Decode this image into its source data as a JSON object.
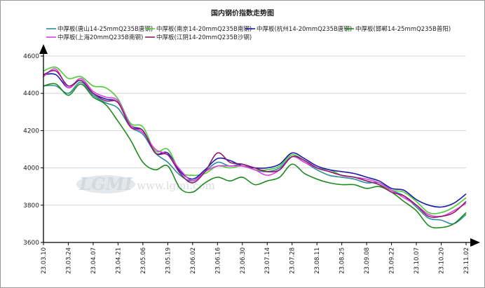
{
  "chart_data": {
    "type": "line",
    "title": "国内钢价指数走势图",
    "xlabel": "",
    "ylabel": "",
    "ylim": [
      3600,
      4600
    ],
    "yticks": [
      3600,
      3800,
      4000,
      4200,
      4400,
      4600
    ],
    "grid": "horizontal",
    "legend_position": "top",
    "x_tick_labels": [
      "23.03.10",
      "23.03.24",
      "23.04.07",
      "23.04.21",
      "23.05.06",
      "23.05.19",
      "23.06.02",
      "23.06.16",
      "23.06.30",
      "23.07.14",
      "23.07.28",
      "23.08.11",
      "23.08.25",
      "23.09.08",
      "23.09.22",
      "23.10.07",
      "23.10.20",
      "23.11.02"
    ],
    "x": [
      "23.03.10",
      "23.03.17",
      "23.03.24",
      "23.03.31",
      "23.04.07",
      "23.04.14",
      "23.04.21",
      "23.04.28",
      "23.05.06",
      "23.05.12",
      "23.05.19",
      "23.05.26",
      "23.06.02",
      "23.06.09",
      "23.06.16",
      "23.06.23",
      "23.06.30",
      "23.07.07",
      "23.07.14",
      "23.07.21",
      "23.07.28",
      "23.08.04",
      "23.08.11",
      "23.08.18",
      "23.08.25",
      "23.09.01",
      "23.09.08",
      "23.09.15",
      "23.09.22",
      "23.09.29",
      "23.10.07",
      "23.10.13",
      "23.10.20",
      "23.10.27",
      "23.11.02"
    ],
    "series": [
      {
        "name": "中厚板(唐山14-25mmQ235B唐钢)",
        "color": "#2a8c9c",
        "values": [
          4440,
          4440,
          4400,
          4460,
          4390,
          4350,
          4320,
          4220,
          4180,
          4080,
          4030,
          3960,
          3930,
          3980,
          4030,
          4010,
          4020,
          3990,
          3980,
          4000,
          4060,
          4030,
          3990,
          3960,
          3950,
          3940,
          3920,
          3920,
          3880,
          3850,
          3790,
          3730,
          3720,
          3700,
          3750
        ]
      },
      {
        "name": "中厚板(南京14-20mmQ235B南钢)",
        "color": "#4ccc38",
        "values": [
          4520,
          4540,
          4480,
          4490,
          4440,
          4430,
          4370,
          4240,
          4220,
          4090,
          4100,
          3980,
          3960,
          3970,
          4010,
          4000,
          4010,
          3990,
          3990,
          4010,
          4070,
          4040,
          4000,
          3990,
          3960,
          3950,
          3930,
          3910,
          3880,
          3870,
          3820,
          3760,
          3760,
          3790,
          3840
        ]
      },
      {
        "name": "中厚板(杭州14-20mmQ235B唐钢)",
        "color": "#1c1ca8",
        "values": [
          4500,
          4500,
          4430,
          4470,
          4400,
          4370,
          4350,
          4230,
          4200,
          4080,
          4080,
          3980,
          3940,
          3990,
          4050,
          4040,
          4010,
          4000,
          4000,
          4020,
          4080,
          4050,
          4010,
          3990,
          3980,
          3970,
          3950,
          3930,
          3890,
          3880,
          3830,
          3800,
          3790,
          3810,
          3860
        ]
      },
      {
        "name": "中厚板(邯郸14-25mmQ235B普阳)",
        "color": "#1e8a1e",
        "values": [
          4440,
          4450,
          4390,
          4450,
          4380,
          4340,
          4250,
          4150,
          4030,
          3990,
          4010,
          3890,
          3870,
          3920,
          3950,
          3930,
          3950,
          3910,
          3930,
          3950,
          4020,
          3970,
          3940,
          3920,
          3910,
          3910,
          3890,
          3900,
          3870,
          3820,
          3770,
          3690,
          3680,
          3700,
          3760
        ]
      },
      {
        "name": "中厚板(上海20mmQ235B南钢)",
        "color": "#e040e0",
        "values": [
          4490,
          4530,
          4430,
          4480,
          4410,
          4380,
          4360,
          4230,
          4190,
          4100,
          4070,
          3990,
          3930,
          3980,
          4010,
          4010,
          4010,
          3990,
          3960,
          3990,
          4060,
          4030,
          4000,
          3980,
          3960,
          3950,
          3940,
          3920,
          3880,
          3840,
          3800,
          3750,
          3740,
          3770,
          3810
        ]
      },
      {
        "name": "中厚板(江阴14-20mmQ235B沙钢)",
        "color": "#8c1c6c",
        "values": [
          4500,
          4520,
          4440,
          4470,
          4400,
          4360,
          4350,
          4220,
          4200,
          4080,
          4070,
          3970,
          3920,
          3980,
          4080,
          4030,
          4020,
          4000,
          3980,
          3990,
          4060,
          4040,
          4000,
          3980,
          3960,
          3950,
          3930,
          3910,
          3870,
          3850,
          3800,
          3740,
          3740,
          3760,
          3820
        ]
      }
    ]
  },
  "watermark": {
    "logo": "LGMI",
    "url": "www.lgmi.com"
  }
}
